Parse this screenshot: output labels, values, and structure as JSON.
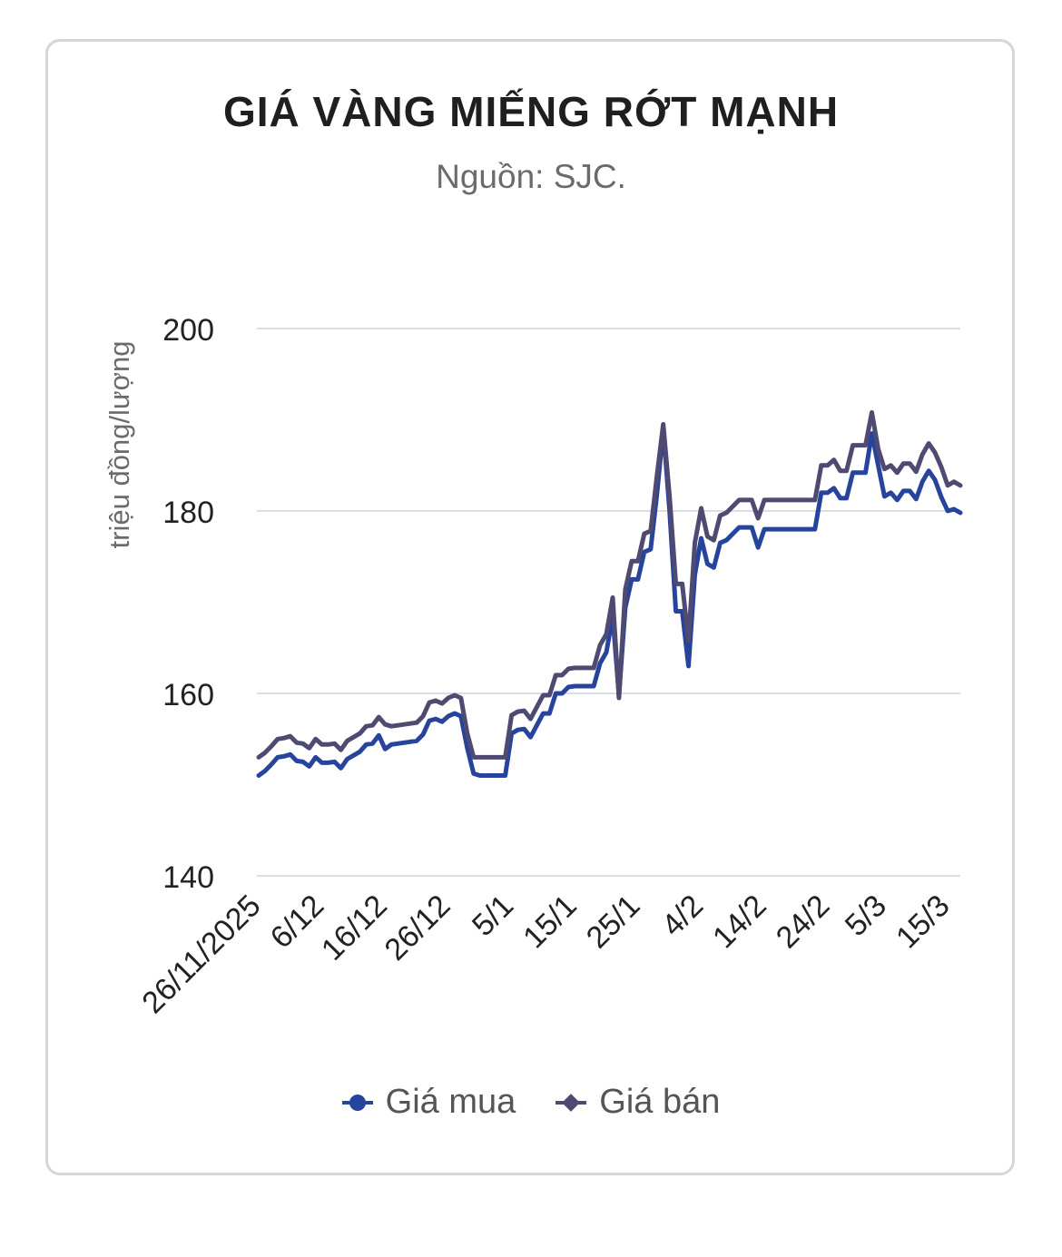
{
  "chart_data": {
    "type": "line",
    "title": "GIÁ VÀNG MIẾNG RỚT MẠNH",
    "subtitle": "Nguồn: SJC.",
    "xlabel": "",
    "ylabel": "triệu đồng/lượng",
    "ylim": [
      140,
      200
    ],
    "yticks": [
      140,
      160,
      180,
      200
    ],
    "grid": true,
    "legend_position": "bottom",
    "x_range": [
      0,
      111
    ],
    "x_tick_labels": [
      {
        "x": 0,
        "label": "26/11/2025"
      },
      {
        "x": 10,
        "label": "6/12"
      },
      {
        "x": 20,
        "label": "16/12"
      },
      {
        "x": 30,
        "label": "26/12"
      },
      {
        "x": 40,
        "label": "5/1"
      },
      {
        "x": 50,
        "label": "15/1"
      },
      {
        "x": 60,
        "label": "25/1"
      },
      {
        "x": 70,
        "label": "4/2"
      },
      {
        "x": 80,
        "label": "14/2"
      },
      {
        "x": 90,
        "label": "24/2"
      },
      {
        "x": 99,
        "label": "5/3"
      },
      {
        "x": 109,
        "label": "15/3"
      }
    ],
    "series": [
      {
        "name": "Giá mua",
        "color": "#27449c",
        "marker": "circle",
        "points": [
          [
            0,
            151
          ],
          [
            1,
            151.5
          ],
          [
            2,
            152.2
          ],
          [
            3,
            153
          ],
          [
            4,
            153.1
          ],
          [
            5,
            153.3
          ],
          [
            6,
            152.6
          ],
          [
            7,
            152.5
          ],
          [
            8,
            152
          ],
          [
            9,
            153
          ],
          [
            10,
            152.4
          ],
          [
            11,
            152.4
          ],
          [
            12,
            152.5
          ],
          [
            13,
            151.8
          ],
          [
            14,
            152.8
          ],
          [
            15,
            153.2
          ],
          [
            16,
            153.6
          ],
          [
            17,
            154.4
          ],
          [
            18,
            154.5
          ],
          [
            19,
            155.4
          ],
          [
            20,
            153.9
          ],
          [
            21,
            154.4
          ],
          [
            22,
            154.5
          ],
          [
            23,
            154.6
          ],
          [
            24,
            154.7
          ],
          [
            25,
            154.8
          ],
          [
            26,
            155.5
          ],
          [
            27,
            157
          ],
          [
            28,
            157.2
          ],
          [
            29,
            156.9
          ],
          [
            30,
            157.5
          ],
          [
            31,
            157.8
          ],
          [
            32,
            157.5
          ],
          [
            33,
            154
          ],
          [
            34,
            151.2
          ],
          [
            35,
            151
          ],
          [
            36,
            151
          ],
          [
            37,
            151
          ],
          [
            38,
            151
          ],
          [
            39,
            151
          ],
          [
            40,
            155.6
          ],
          [
            41,
            156
          ],
          [
            42,
            156.1
          ],
          [
            43,
            155.2
          ],
          [
            44,
            156.5
          ],
          [
            45,
            157.8
          ],
          [
            46,
            157.8
          ],
          [
            47,
            160
          ],
          [
            48,
            160
          ],
          [
            49,
            160.7
          ],
          [
            50,
            160.8
          ],
          [
            51,
            160.8
          ],
          [
            52,
            160.8
          ],
          [
            53,
            160.8
          ],
          [
            54,
            163.3
          ],
          [
            55,
            164.5
          ],
          [
            56,
            168.5
          ],
          [
            57,
            159.8
          ],
          [
            58,
            169.4
          ],
          [
            59,
            172.5
          ],
          [
            60,
            172.5
          ],
          [
            61,
            175.5
          ],
          [
            62,
            175.8
          ],
          [
            63,
            181.8
          ],
          [
            64,
            189
          ],
          [
            65,
            180
          ],
          [
            66,
            169
          ],
          [
            67,
            169
          ],
          [
            68,
            163
          ],
          [
            69,
            173
          ],
          [
            70,
            177
          ],
          [
            71,
            174.2
          ],
          [
            72,
            173.8
          ],
          [
            73,
            176.5
          ],
          [
            74,
            176.8
          ],
          [
            75,
            177.5
          ],
          [
            76,
            178.2
          ],
          [
            77,
            178.2
          ],
          [
            78,
            178.2
          ],
          [
            79,
            176
          ],
          [
            80,
            178
          ],
          [
            81,
            178
          ],
          [
            82,
            178
          ],
          [
            83,
            178
          ],
          [
            84,
            178
          ],
          [
            85,
            178
          ],
          [
            86,
            178
          ],
          [
            87,
            178
          ],
          [
            88,
            178
          ],
          [
            89,
            182
          ],
          [
            90,
            182
          ],
          [
            91,
            182.5
          ],
          [
            92,
            181.4
          ],
          [
            93,
            181.4
          ],
          [
            94,
            184.2
          ],
          [
            95,
            184.2
          ],
          [
            96,
            184.2
          ],
          [
            97,
            188.5
          ],
          [
            98,
            185
          ],
          [
            99,
            181.6
          ],
          [
            100,
            182
          ],
          [
            101,
            181.2
          ],
          [
            102,
            182.2
          ],
          [
            103,
            182.2
          ],
          [
            104,
            181.3
          ],
          [
            105,
            183.2
          ],
          [
            106,
            184.4
          ],
          [
            107,
            183.4
          ],
          [
            108,
            181.5
          ],
          [
            109,
            180
          ],
          [
            110,
            180.2
          ],
          [
            111,
            179.8
          ]
        ]
      },
      {
        "name": "Giá bán",
        "color": "#4e4a72",
        "marker": "diamond",
        "points": [
          [
            0,
            153
          ],
          [
            1,
            153.5
          ],
          [
            2,
            154.2
          ],
          [
            3,
            155
          ],
          [
            4,
            155.1
          ],
          [
            5,
            155.3
          ],
          [
            6,
            154.6
          ],
          [
            7,
            154.5
          ],
          [
            8,
            154
          ],
          [
            9,
            155
          ],
          [
            10,
            154.4
          ],
          [
            11,
            154.4
          ],
          [
            12,
            154.5
          ],
          [
            13,
            153.8
          ],
          [
            14,
            154.8
          ],
          [
            15,
            155.2
          ],
          [
            16,
            155.6
          ],
          [
            17,
            156.4
          ],
          [
            18,
            156.5
          ],
          [
            19,
            157.4
          ],
          [
            20,
            156.6
          ],
          [
            21,
            156.4
          ],
          [
            22,
            156.5
          ],
          [
            23,
            156.6
          ],
          [
            24,
            156.7
          ],
          [
            25,
            156.8
          ],
          [
            26,
            157.5
          ],
          [
            27,
            159
          ],
          [
            28,
            159.2
          ],
          [
            29,
            158.9
          ],
          [
            30,
            159.5
          ],
          [
            31,
            159.8
          ],
          [
            32,
            159.5
          ],
          [
            33,
            155.6
          ],
          [
            34,
            153
          ],
          [
            35,
            153
          ],
          [
            36,
            153
          ],
          [
            37,
            153
          ],
          [
            38,
            153
          ],
          [
            39,
            153
          ],
          [
            40,
            157.6
          ],
          [
            41,
            158
          ],
          [
            42,
            158.1
          ],
          [
            43,
            157.2
          ],
          [
            44,
            158.5
          ],
          [
            45,
            159.8
          ],
          [
            46,
            159.8
          ],
          [
            47,
            162
          ],
          [
            48,
            162
          ],
          [
            49,
            162.7
          ],
          [
            50,
            162.8
          ],
          [
            51,
            162.8
          ],
          [
            52,
            162.8
          ],
          [
            53,
            162.8
          ],
          [
            54,
            165.3
          ],
          [
            55,
            166.5
          ],
          [
            56,
            170.5
          ],
          [
            57,
            159.5
          ],
          [
            58,
            171.4
          ],
          [
            59,
            174.5
          ],
          [
            60,
            174.5
          ],
          [
            61,
            177.5
          ],
          [
            62,
            177.8
          ],
          [
            63,
            183.8
          ],
          [
            64,
            189.5
          ],
          [
            65,
            181.5
          ],
          [
            66,
            172
          ],
          [
            67,
            172
          ],
          [
            68,
            165.8
          ],
          [
            69,
            176.5
          ],
          [
            70,
            180.3
          ],
          [
            71,
            177.2
          ],
          [
            72,
            176.8
          ],
          [
            73,
            179.5
          ],
          [
            74,
            179.8
          ],
          [
            75,
            180.5
          ],
          [
            76,
            181.2
          ],
          [
            77,
            181.2
          ],
          [
            78,
            181.2
          ],
          [
            79,
            179.2
          ],
          [
            80,
            181.2
          ],
          [
            81,
            181.2
          ],
          [
            82,
            181.2
          ],
          [
            83,
            181.2
          ],
          [
            84,
            181.2
          ],
          [
            85,
            181.2
          ],
          [
            86,
            181.2
          ],
          [
            87,
            181.2
          ],
          [
            88,
            181.2
          ],
          [
            89,
            185
          ],
          [
            90,
            185
          ],
          [
            91,
            185.6
          ],
          [
            92,
            184.4
          ],
          [
            93,
            184.4
          ],
          [
            94,
            187.2
          ],
          [
            95,
            187.2
          ],
          [
            96,
            187.2
          ],
          [
            97,
            190.8
          ],
          [
            98,
            186.8
          ],
          [
            99,
            184.6
          ],
          [
            100,
            185
          ],
          [
            101,
            184.2
          ],
          [
            102,
            185.2
          ],
          [
            103,
            185.2
          ],
          [
            104,
            184.3
          ],
          [
            105,
            186.2
          ],
          [
            106,
            187.4
          ],
          [
            107,
            186.4
          ],
          [
            108,
            184.8
          ],
          [
            109,
            182.8
          ],
          [
            110,
            183.2
          ],
          [
            111,
            182.8
          ]
        ]
      }
    ]
  }
}
